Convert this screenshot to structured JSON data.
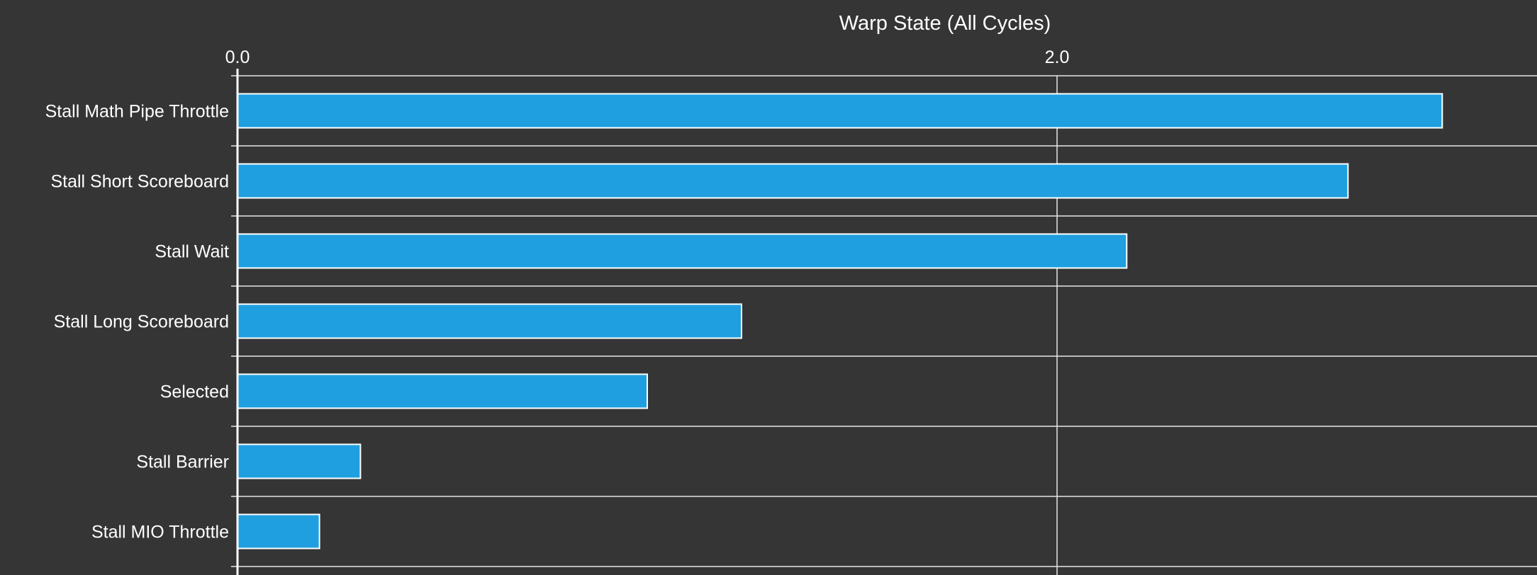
{
  "chart_data": {
    "type": "bar",
    "orientation": "horizontal",
    "title": "Warp State (All Cycles)",
    "xlabel": "",
    "ylabel": "",
    "xlim": [
      0,
      3.17
    ],
    "x_ticks": [
      {
        "value": 0,
        "label": "0.0"
      },
      {
        "value": 2,
        "label": "2.0"
      }
    ],
    "categories": [
      "Stall Math Pipe Throttle",
      "Stall Short Scoreboard",
      "Stall Wait",
      "Stall Long Scoreboard",
      "Selected",
      "Stall Barrier",
      "Stall MIO Throttle"
    ],
    "values": [
      2.94,
      2.71,
      2.17,
      1.23,
      1.0,
      0.3,
      0.2
    ],
    "bar_color": "#1f9fdf",
    "grid": true,
    "legend": "none"
  }
}
